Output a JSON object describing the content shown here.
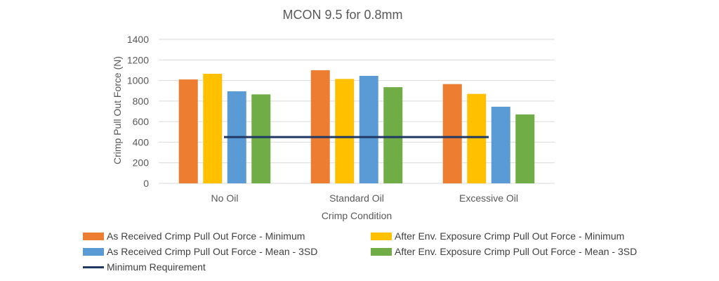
{
  "chart_data": {
    "type": "bar",
    "title": "MCON 9.5 for 0.8mm",
    "xlabel": "Crimp Condition",
    "ylabel": "Crimp Pull Out Force  (N)",
    "ylim": [
      0,
      1400
    ],
    "yticks": [
      0,
      200,
      400,
      600,
      800,
      1000,
      1200,
      1400
    ],
    "grid": true,
    "categories": [
      "No Oil",
      "Standard Oil",
      "Excessive Oil"
    ],
    "series": [
      {
        "name": "As Received Crimp Pull Out Force - Minimum",
        "color": "#ED7D31",
        "values": [
          1010,
          1100,
          965
        ]
      },
      {
        "name": "After Env. Exposure Crimp Pull Out Force - Minimum",
        "color": "#FFC000",
        "values": [
          1065,
          1015,
          870
        ]
      },
      {
        "name": "As Received Crimp Pull Out Force - Mean - 3SD",
        "color": "#5B9BD5",
        "values": [
          895,
          1045,
          745
        ]
      },
      {
        "name": "After Env. Exposure Crimp Pull Out Force - Mean - 3SD",
        "color": "#70AD47",
        "values": [
          865,
          935,
          670
        ]
      }
    ],
    "line_series": {
      "name": "Minimum Requirement",
      "color": "#1F3864",
      "value": 450
    },
    "legend_position": "bottom"
  }
}
